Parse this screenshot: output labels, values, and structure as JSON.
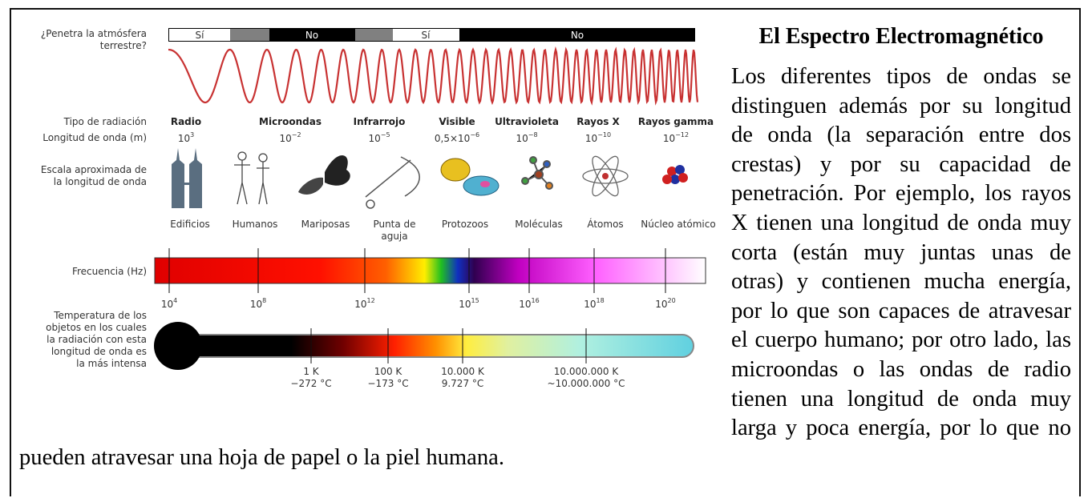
{
  "title": "El Espectro Electromagnético",
  "paragraph": "Los diferentes tipos de ondas se distinguen además por su longitud de onda (la separación entre dos crestas) y por su capacidad de penetración. Por ejemplo, los rayos X tienen una longitud de onda muy corta (están muy juntas unas de otras) y contienen mucha energía, por lo que son capaces de atravesar el cuerpo humano; por otro lado, las microondas o las ondas de radio tienen una longitud de onda muy larga y poca energía, por lo que no pueden atravesar una hoja de papel o la piel humana.",
  "diagram": {
    "atmosphere_label": [
      "¿Penetra la atmósfera",
      "terrestre?"
    ],
    "atmosphere_bar": [
      "Sí",
      "No",
      "Sí",
      "No"
    ],
    "type_label": "Tipo de radiación",
    "wavelength_label": "Longitud de onda (m)",
    "scale_label": [
      "Escala aproximada de",
      "la longitud de onda"
    ],
    "frequency_label": "Frecuencia (Hz)",
    "temperature_label": [
      "Temperatura de los",
      "objetos en los cuales",
      "la radiación con esta",
      "longitud de onda es",
      "la más intensa"
    ],
    "radiation_types": [
      {
        "name": "Radio",
        "wavelength": {
          "base": "10",
          "exp": "3"
        }
      },
      {
        "name": "Microondas",
        "wavelength": {
          "base": "10",
          "exp": "−2"
        }
      },
      {
        "name": "Infrarrojo",
        "wavelength": {
          "base": "10",
          "exp": "−5"
        }
      },
      {
        "name": "Visible",
        "wavelength": {
          "base": "0,5×10",
          "exp": "−6"
        }
      },
      {
        "name": "Ultravioleta",
        "wavelength": {
          "base": "10",
          "exp": "−8"
        }
      },
      {
        "name": "Rayos X",
        "wavelength": {
          "base": "10",
          "exp": "−10"
        }
      },
      {
        "name": "Rayos gamma",
        "wavelength": {
          "base": "10",
          "exp": "−12"
        }
      }
    ],
    "scale_objects": [
      [
        "Edificios"
      ],
      [
        "Humanos"
      ],
      [
        "Mariposas"
      ],
      [
        "Punta de",
        "aguja"
      ],
      [
        "Protozoos"
      ],
      [
        "Moléculas"
      ],
      [
        "Átomos"
      ],
      [
        "Núcleo atómico"
      ]
    ],
    "frequencies": [
      {
        "base": "10",
        "exp": "4"
      },
      {
        "base": "10",
        "exp": "8"
      },
      {
        "base": "10",
        "exp": "12"
      },
      {
        "base": "10",
        "exp": "15"
      },
      {
        "base": "10",
        "exp": "16"
      },
      {
        "base": "10",
        "exp": "18"
      },
      {
        "base": "10",
        "exp": "20"
      }
    ],
    "temperatures": [
      {
        "kelvin": "1 K",
        "celsius": "−272 °C"
      },
      {
        "kelvin": "100 K",
        "celsius": "−173 °C"
      },
      {
        "kelvin": "10.000 K",
        "celsius": "9.727 °C"
      },
      {
        "kelvin": "10.000.000 K",
        "celsius": "~10.000.000 °C"
      }
    ]
  }
}
